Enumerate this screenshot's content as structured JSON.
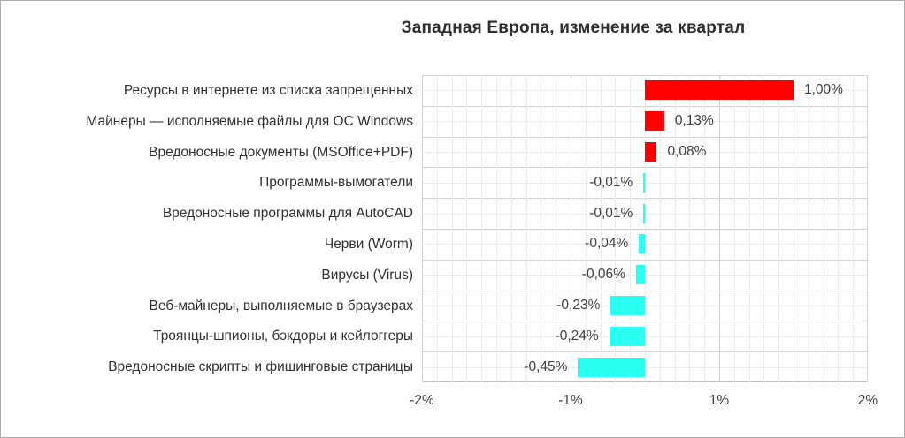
{
  "title": "Западная Европа, изменение за квартал",
  "colors": {
    "positive_bar": "#ff0000",
    "negative_bar": "#2afff2",
    "grid_minor": "#ececec",
    "grid_major": "#d2d2d2",
    "axis_line": "#bfbfbf",
    "text": "#404040",
    "title_text": "#2e2e2e",
    "background": "#ffffff"
  },
  "chart_data": {
    "type": "bar",
    "orientation": "horizontal",
    "title": "Западная Европа, изменение за квартал",
    "categories": [
      "Ресурсы в интернете из списка запрещенных",
      "Майнеры — исполняемые файлы для ОС Windows",
      "Вредоносные документы (MSOffice+PDF)",
      "Программы-вымогатели",
      "Вредоносные программы для AutoCAD",
      "Черви (Worm)",
      "Вирусы (Virus)",
      "Веб-майнеры, выполняемые в браузерах",
      "Троянцы-шпионы, бэкдоры и кейлоггеры",
      "Вредоносные скрипты и фишинговые страницы"
    ],
    "values": [
      1.0,
      0.13,
      0.08,
      -0.01,
      -0.01,
      -0.04,
      -0.06,
      -0.23,
      -0.24,
      -0.45
    ],
    "value_labels": [
      "1,00%",
      "0,13%",
      "0,08%",
      "-0,01%",
      "-0,01%",
      "-0,04%",
      "-0,06%",
      "-0,23%",
      "-0,24%",
      "-0,45%"
    ],
    "xlabel": "",
    "ylabel": "",
    "x_tick_labels": [
      "-2%",
      "-1%",
      "1%",
      "2%"
    ],
    "xlim_labeled": [
      -2,
      2
    ],
    "grid": true,
    "legend": false,
    "units": "%"
  }
}
